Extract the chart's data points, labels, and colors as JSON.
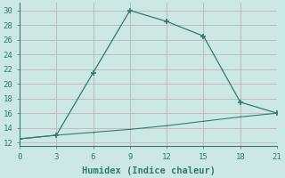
{
  "line1_x": [
    0,
    3,
    6,
    9,
    12,
    15,
    18,
    21
  ],
  "line1_y": [
    12.5,
    13.0,
    21.5,
    30.0,
    28.5,
    26.5,
    17.5,
    16.0
  ],
  "line2_x": [
    0,
    3,
    6,
    9,
    12,
    15,
    18,
    21
  ],
  "line2_y": [
    12.5,
    13.0,
    13.4,
    13.8,
    14.3,
    14.9,
    15.5,
    16.0
  ],
  "line_color": "#2e7d6e",
  "bg_color": "#cce8e4",
  "grid_color": "#c8b8bc",
  "xlabel": "Humidex (Indice chaleur)",
  "xlim": [
    0,
    21
  ],
  "ylim": [
    11.5,
    31
  ],
  "xticks": [
    0,
    3,
    6,
    9,
    12,
    15,
    18,
    21
  ],
  "yticks": [
    12,
    14,
    16,
    18,
    20,
    22,
    24,
    26,
    28,
    30
  ],
  "tick_fontsize": 6.5,
  "xlabel_fontsize": 7.5
}
